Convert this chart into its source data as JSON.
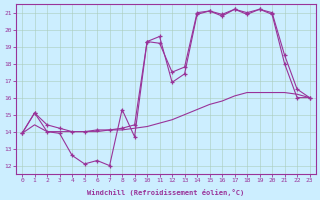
{
  "xlabel": "Windchill (Refroidissement éolien,°C)",
  "ylabel": "",
  "bg_color": "#cceeff",
  "line_color": "#993399",
  "grid_color": "#aaccbb",
  "xlim": [
    -0.5,
    23.5
  ],
  "ylim": [
    11.5,
    21.5
  ],
  "xticks": [
    0,
    1,
    2,
    3,
    4,
    5,
    6,
    7,
    8,
    9,
    10,
    11,
    12,
    13,
    14,
    15,
    16,
    17,
    18,
    19,
    20,
    21,
    22,
    23
  ],
  "yticks": [
    12,
    13,
    14,
    15,
    16,
    17,
    18,
    19,
    20,
    21
  ],
  "line1_x": [
    0,
    1,
    2,
    3,
    4,
    5,
    6,
    7,
    8,
    9,
    10,
    11,
    12,
    13,
    14,
    15,
    16,
    17,
    18,
    19,
    20,
    21,
    22,
    23
  ],
  "line1_y": [
    13.9,
    15.1,
    14.0,
    13.9,
    12.6,
    12.1,
    12.3,
    12.0,
    15.3,
    13.7,
    19.3,
    19.6,
    16.9,
    17.4,
    20.9,
    21.1,
    20.8,
    21.2,
    20.9,
    21.2,
    20.9,
    18.0,
    16.0,
    16.0
  ],
  "line2_x": [
    0,
    1,
    2,
    3,
    4,
    5,
    6,
    7,
    8,
    9,
    10,
    11,
    12,
    13,
    14,
    15,
    16,
    17,
    18,
    19,
    20,
    21,
    22,
    23
  ],
  "line2_y": [
    13.9,
    14.4,
    14.0,
    14.0,
    14.0,
    14.0,
    14.0,
    14.1,
    14.1,
    14.2,
    14.3,
    14.5,
    14.7,
    15.0,
    15.3,
    15.6,
    15.8,
    16.1,
    16.3,
    16.3,
    16.3,
    16.3,
    16.2,
    16.0
  ],
  "line3_x": [
    0,
    1,
    2,
    3,
    4,
    5,
    6,
    7,
    8,
    9,
    10,
    11,
    12,
    13,
    14,
    15,
    16,
    17,
    18,
    19,
    20,
    21,
    22,
    23
  ],
  "line3_y": [
    13.9,
    15.1,
    14.4,
    14.2,
    14.0,
    14.0,
    14.1,
    14.1,
    14.2,
    14.4,
    19.3,
    19.2,
    17.5,
    17.8,
    21.0,
    21.1,
    20.9,
    21.2,
    21.0,
    21.2,
    21.0,
    18.5,
    16.5,
    16.0
  ]
}
